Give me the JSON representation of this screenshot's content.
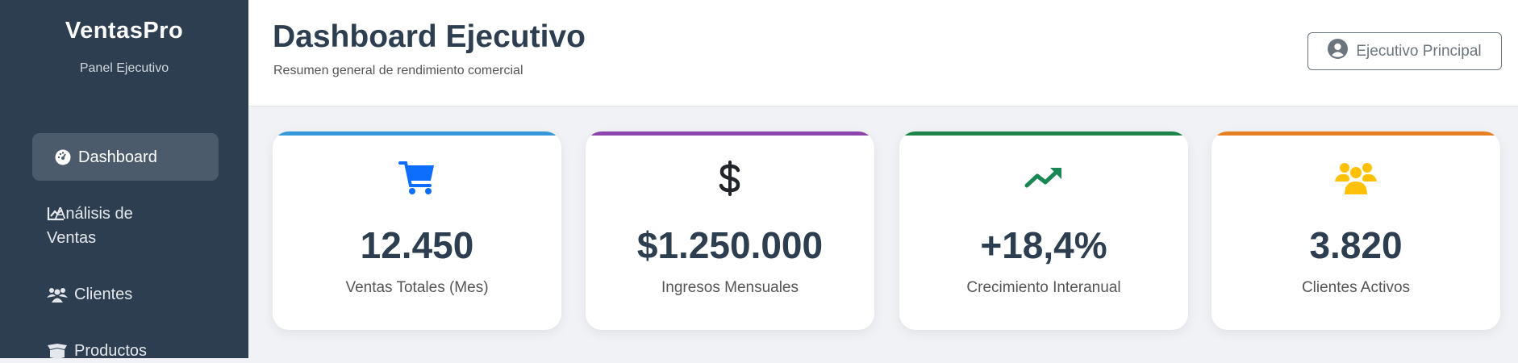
{
  "sidebar": {
    "brand": "VentasPro",
    "subtitle": "Panel Ejecutivo",
    "items": [
      {
        "label": "Dashboard",
        "icon": "gauge-icon",
        "active": true
      },
      {
        "label": "Análisis de Ventas",
        "icon": "chart-line-icon"
      },
      {
        "label": "Clientes",
        "icon": "users-icon"
      },
      {
        "label": "Productos",
        "icon": "box-open-icon"
      }
    ]
  },
  "header": {
    "title": "Dashboard Ejecutivo",
    "subtitle": "Resumen general de rendimiento comercial",
    "user_label": "Ejecutivo Principal",
    "user_icon": "user-circle-icon"
  },
  "cards": [
    {
      "value": "12.450",
      "label": "Ventas Totales (Mes)",
      "icon": "shopping-cart-icon",
      "accent": "#3498db",
      "icon_color": "#0d6efd"
    },
    {
      "value": "$1.250.000",
      "label": "Ingresos Mensuales",
      "icon": "dollar-sign-icon",
      "accent": "#8e44ad",
      "icon_color": "#212529"
    },
    {
      "value": "+18,4%",
      "label": "Crecimiento Interanual",
      "icon": "trend-up-icon",
      "accent": "#1e8449",
      "icon_color": "#198754"
    },
    {
      "value": "3.820",
      "label": "Clientes Activos",
      "icon": "users-icon",
      "accent": "#e67e22",
      "icon_color": "#ffc107"
    }
  ]
}
